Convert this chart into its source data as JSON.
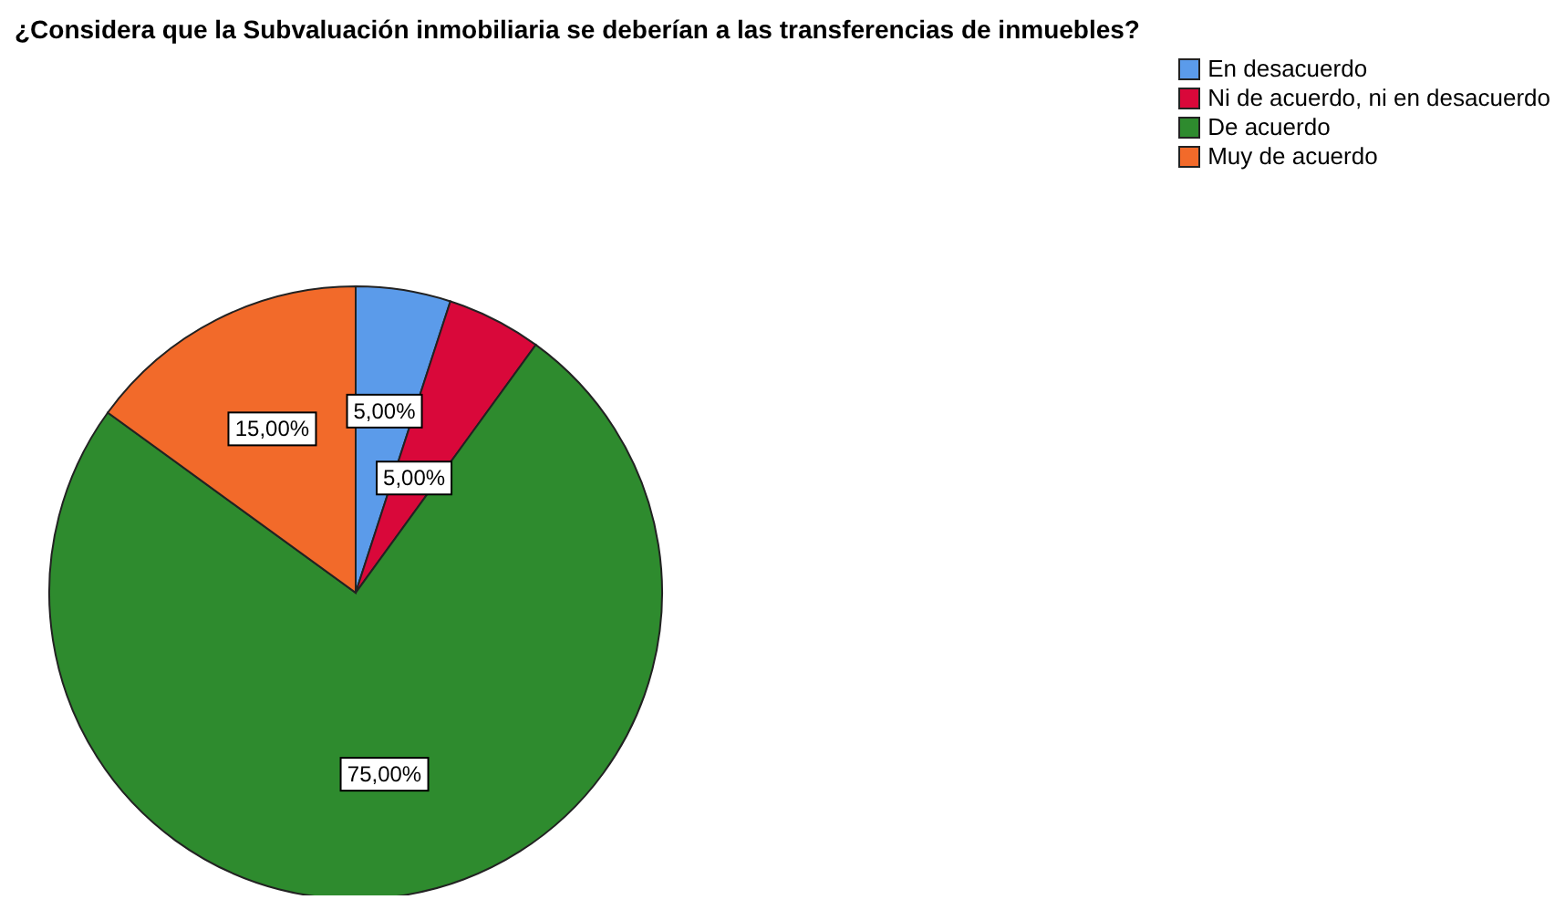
{
  "chart_data": {
    "type": "pie",
    "title": "¿Considera que la Subvaluación inmobiliaria se deberían a las transferencias de inmuebles?",
    "categories": [
      "En desacuerdo",
      "Ni de acuerdo, ni en desacuerdo",
      "De acuerdo",
      "Muy de acuerdo"
    ],
    "values": [
      5,
      5,
      75,
      15
    ],
    "colors": [
      "#5b9bea",
      "#d9083a",
      "#2e8b2e",
      "#f26a2a"
    ],
    "value_labels": [
      "5,00%",
      "5,00%",
      "75,00%",
      "15,00%"
    ],
    "legend": "top right"
  }
}
